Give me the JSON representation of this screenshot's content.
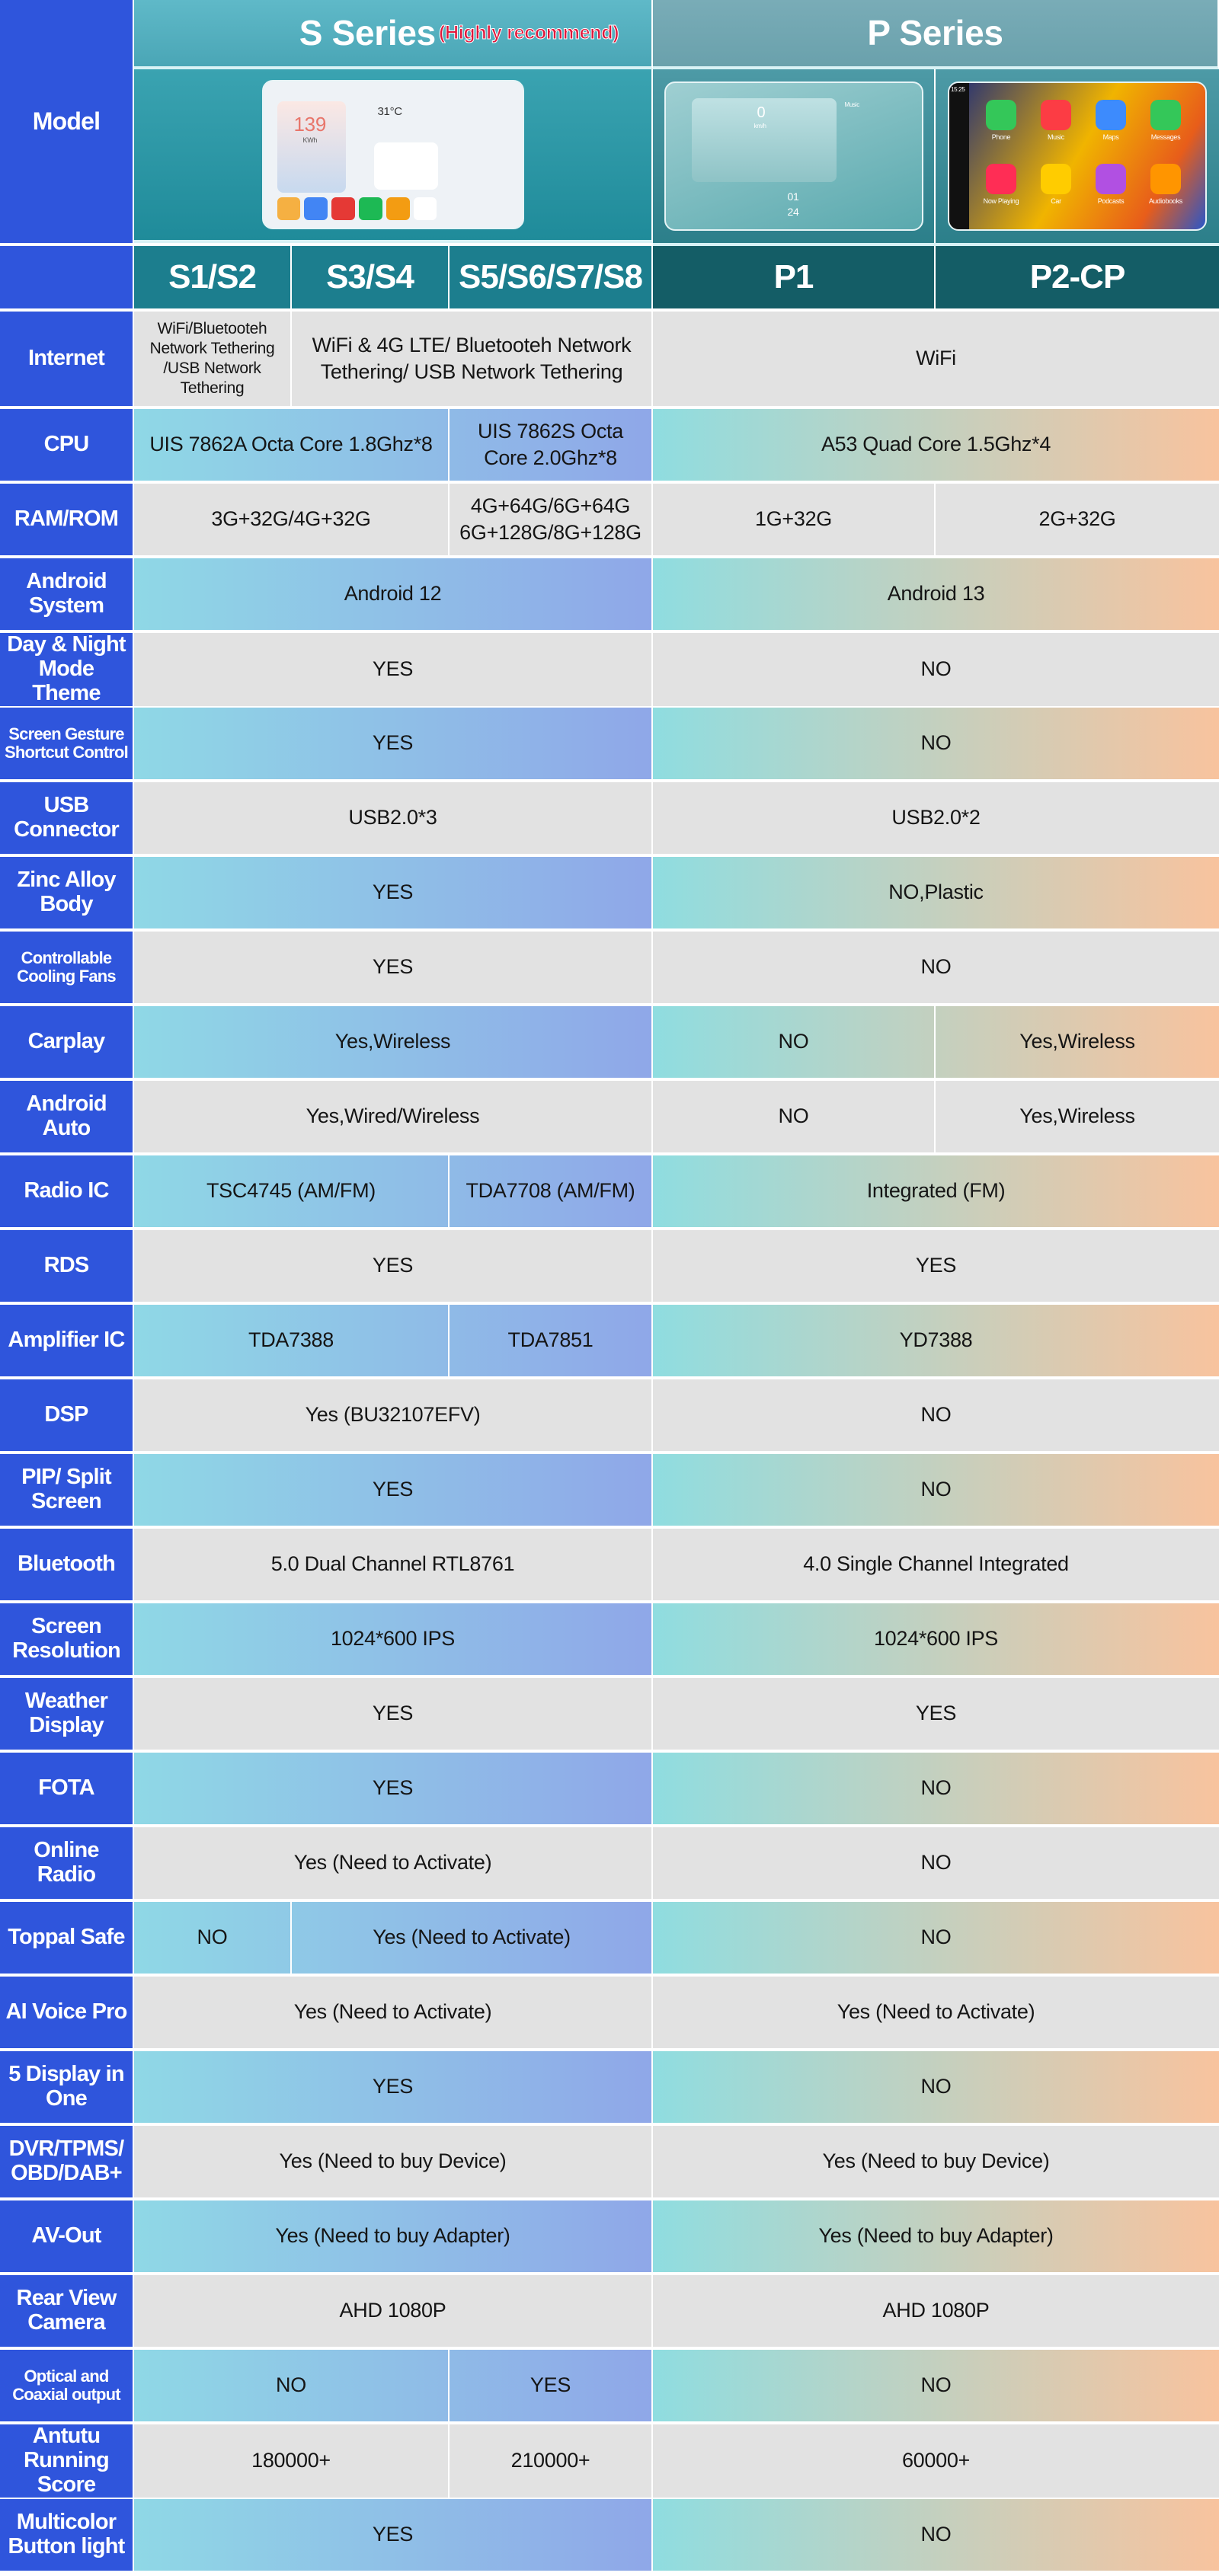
{
  "header": {
    "model_label": "Model",
    "s_series": "S Series",
    "s_series_note": "(Highly recommend)",
    "p_series": "P Series",
    "models": [
      "S1/S2",
      "S3/S4",
      "S5/S6/S7/S8",
      "P1",
      "P2-CP"
    ]
  },
  "mockups": {
    "s_screen": {
      "speed": "139",
      "unit": "KWh",
      "temp": "31°C"
    },
    "p1_screen": {
      "speed": "0",
      "unit": "km/h",
      "music": "Music",
      "day": "01",
      "date": "24"
    },
    "carplay_screen": {
      "time": "15:25",
      "apps": [
        "Phone",
        "Music",
        "Maps",
        "Messages",
        "Now Playing",
        "Car",
        "Podcasts",
        "Audiobooks"
      ]
    }
  },
  "colors": {
    "label_bg": "#2f55dc",
    "gray_row": "#e2e2e2",
    "s_gradient": [
      "#8fd8e6",
      "#8fa7e8"
    ],
    "p_gradient": [
      "#8fdde0",
      "#f8c39e"
    ],
    "highlight_note": "#e0163a"
  },
  "rows": [
    {
      "label": "Internet",
      "style": "gray",
      "cells": [
        {
          "text": "WiFi/Bluetooteh Network Tethering /USB Network Tethering",
          "span": 1
        },
        {
          "text": "WiFi & 4G LTE/ Bluetooteh Network Tethering/ USB Network Tethering",
          "span": 2
        },
        {
          "text": "WiFi",
          "span": 2
        }
      ]
    },
    {
      "label": "CPU",
      "style": "gradient",
      "cells": [
        {
          "text": "UIS 7862A Octa Core 1.8Ghz*8",
          "span": 2
        },
        {
          "text": "UIS 7862S Octa Core 2.0Ghz*8",
          "span": 1
        },
        {
          "text": "A53 Quad Core 1.5Ghz*4",
          "span": 2
        }
      ]
    },
    {
      "label": "RAM/ROM",
      "style": "gray",
      "cells": [
        {
          "text": "3G+32G/4G+32G",
          "span": 2
        },
        {
          "text": "4G+64G/6G+64G 6G+128G/8G+128G",
          "span": 1
        },
        {
          "text": "1G+32G",
          "span": 1
        },
        {
          "text": "2G+32G",
          "span": 1
        }
      ]
    },
    {
      "label": "Android System",
      "style": "gradient",
      "cells": [
        {
          "text": "Android 12",
          "span": 3
        },
        {
          "text": "Android 13",
          "span": 2
        }
      ]
    },
    {
      "label": "Day & Night Mode Theme",
      "style": "gray",
      "cells": [
        {
          "text": "YES",
          "span": 3
        },
        {
          "text": "NO",
          "span": 2
        }
      ]
    },
    {
      "label": "Screen Gesture Shortcut Control",
      "style": "gradient",
      "cells": [
        {
          "text": "YES",
          "span": 3
        },
        {
          "text": "NO",
          "span": 2
        }
      ]
    },
    {
      "label": "USB Connector",
      "style": "gray",
      "cells": [
        {
          "text": "USB2.0*3",
          "span": 3
        },
        {
          "text": "USB2.0*2",
          "span": 2
        }
      ]
    },
    {
      "label": "Zinc Alloy Body",
      "style": "gradient",
      "cells": [
        {
          "text": "YES",
          "span": 3
        },
        {
          "text": "NO,Plastic",
          "span": 2
        }
      ]
    },
    {
      "label": "Controllable Cooling Fans",
      "style": "gray",
      "cells": [
        {
          "text": "YES",
          "span": 3
        },
        {
          "text": "NO",
          "span": 2
        }
      ]
    },
    {
      "label": "Carplay",
      "style": "gradient",
      "cells": [
        {
          "text": "Yes,Wireless",
          "span": 3
        },
        {
          "text": "NO",
          "span": 1
        },
        {
          "text": "Yes,Wireless",
          "span": 1
        }
      ]
    },
    {
      "label": "Android Auto",
      "style": "gray",
      "cells": [
        {
          "text": "Yes,Wired/Wireless",
          "span": 3
        },
        {
          "text": "NO",
          "span": 1
        },
        {
          "text": "Yes,Wireless",
          "span": 1
        }
      ]
    },
    {
      "label": "Radio IC",
      "style": "gradient",
      "cells": [
        {
          "text": "TSC4745 (AM/FM)",
          "span": 2
        },
        {
          "text": "TDA7708 (AM/FM)",
          "span": 1
        },
        {
          "text": "Integrated (FM)",
          "span": 2
        }
      ]
    },
    {
      "label": "RDS",
      "style": "gray",
      "cells": [
        {
          "text": "YES",
          "span": 3
        },
        {
          "text": "YES",
          "span": 2
        }
      ]
    },
    {
      "label": "Amplifier IC",
      "style": "gradient",
      "cells": [
        {
          "text": "TDA7388",
          "span": 2
        },
        {
          "text": "TDA7851",
          "span": 1
        },
        {
          "text": "YD7388",
          "span": 2
        }
      ]
    },
    {
      "label": "DSP",
      "style": "gray",
      "cells": [
        {
          "text": "Yes (BU32107EFV)",
          "span": 3
        },
        {
          "text": "NO",
          "span": 2
        }
      ]
    },
    {
      "label": "PIP/ Split Screen",
      "style": "gradient",
      "cells": [
        {
          "text": "YES",
          "span": 3
        },
        {
          "text": "NO",
          "span": 2
        }
      ]
    },
    {
      "label": "Bluetooth",
      "style": "gray",
      "cells": [
        {
          "text": "5.0 Dual Channel RTL8761",
          "span": 3
        },
        {
          "text": "4.0 Single Channel Integrated",
          "span": 2
        }
      ]
    },
    {
      "label": "Screen Resolution",
      "style": "gradient",
      "cells": [
        {
          "text": "1024*600 IPS",
          "span": 3
        },
        {
          "text": "1024*600 IPS",
          "span": 2
        }
      ]
    },
    {
      "label": "Weather Display",
      "style": "gray",
      "cells": [
        {
          "text": "YES",
          "span": 3
        },
        {
          "text": "YES",
          "span": 2
        }
      ]
    },
    {
      "label": "FOTA",
      "style": "gradient",
      "cells": [
        {
          "text": "YES",
          "span": 3
        },
        {
          "text": "NO",
          "span": 2
        }
      ]
    },
    {
      "label": "Online Radio",
      "style": "gray",
      "cells": [
        {
          "text": "Yes (Need to Activate)",
          "span": 3
        },
        {
          "text": "NO",
          "span": 2
        }
      ]
    },
    {
      "label": "Toppal Safe",
      "style": "gradient",
      "cells": [
        {
          "text": "NO",
          "span": 1
        },
        {
          "text": "Yes (Need to Activate)",
          "span": 2
        },
        {
          "text": "NO",
          "span": 2
        }
      ]
    },
    {
      "label": "AI Voice Pro",
      "style": "gray",
      "cells": [
        {
          "text": "Yes (Need to Activate)",
          "span": 3
        },
        {
          "text": "Yes (Need to Activate)",
          "span": 2
        }
      ]
    },
    {
      "label": "5 Display in One",
      "style": "gradient",
      "cells": [
        {
          "text": "YES",
          "span": 3
        },
        {
          "text": "NO",
          "span": 2
        }
      ]
    },
    {
      "label": "DVR/TPMS/ OBD/DAB+",
      "style": "gray",
      "cells": [
        {
          "text": "Yes (Need to buy Device)",
          "span": 3
        },
        {
          "text": "Yes (Need to buy Device)",
          "span": 2
        }
      ]
    },
    {
      "label": "AV-Out",
      "style": "gradient",
      "cells": [
        {
          "text": "Yes (Need to buy Adapter)",
          "span": 3
        },
        {
          "text": "Yes (Need to buy Adapter)",
          "span": 2
        }
      ]
    },
    {
      "label": "Rear View Camera",
      "style": "gray",
      "cells": [
        {
          "text": "AHD 1080P",
          "span": 3
        },
        {
          "text": "AHD 1080P",
          "span": 2
        }
      ]
    },
    {
      "label": "Optical and Coaxial output",
      "style": "gradient",
      "cells": [
        {
          "text": "NO",
          "span": 2
        },
        {
          "text": "YES",
          "span": 1
        },
        {
          "text": "NO",
          "span": 2
        }
      ]
    },
    {
      "label": "Antutu Running Score",
      "style": "gray",
      "cells": [
        {
          "text": "180000+",
          "span": 2
        },
        {
          "text": "210000+",
          "span": 1
        },
        {
          "text": "60000+",
          "span": 2
        }
      ]
    },
    {
      "label": "Multicolor Button light",
      "style": "gradient",
      "cells": [
        {
          "text": "YES",
          "span": 3
        },
        {
          "text": "NO",
          "span": 2
        }
      ]
    }
  ]
}
